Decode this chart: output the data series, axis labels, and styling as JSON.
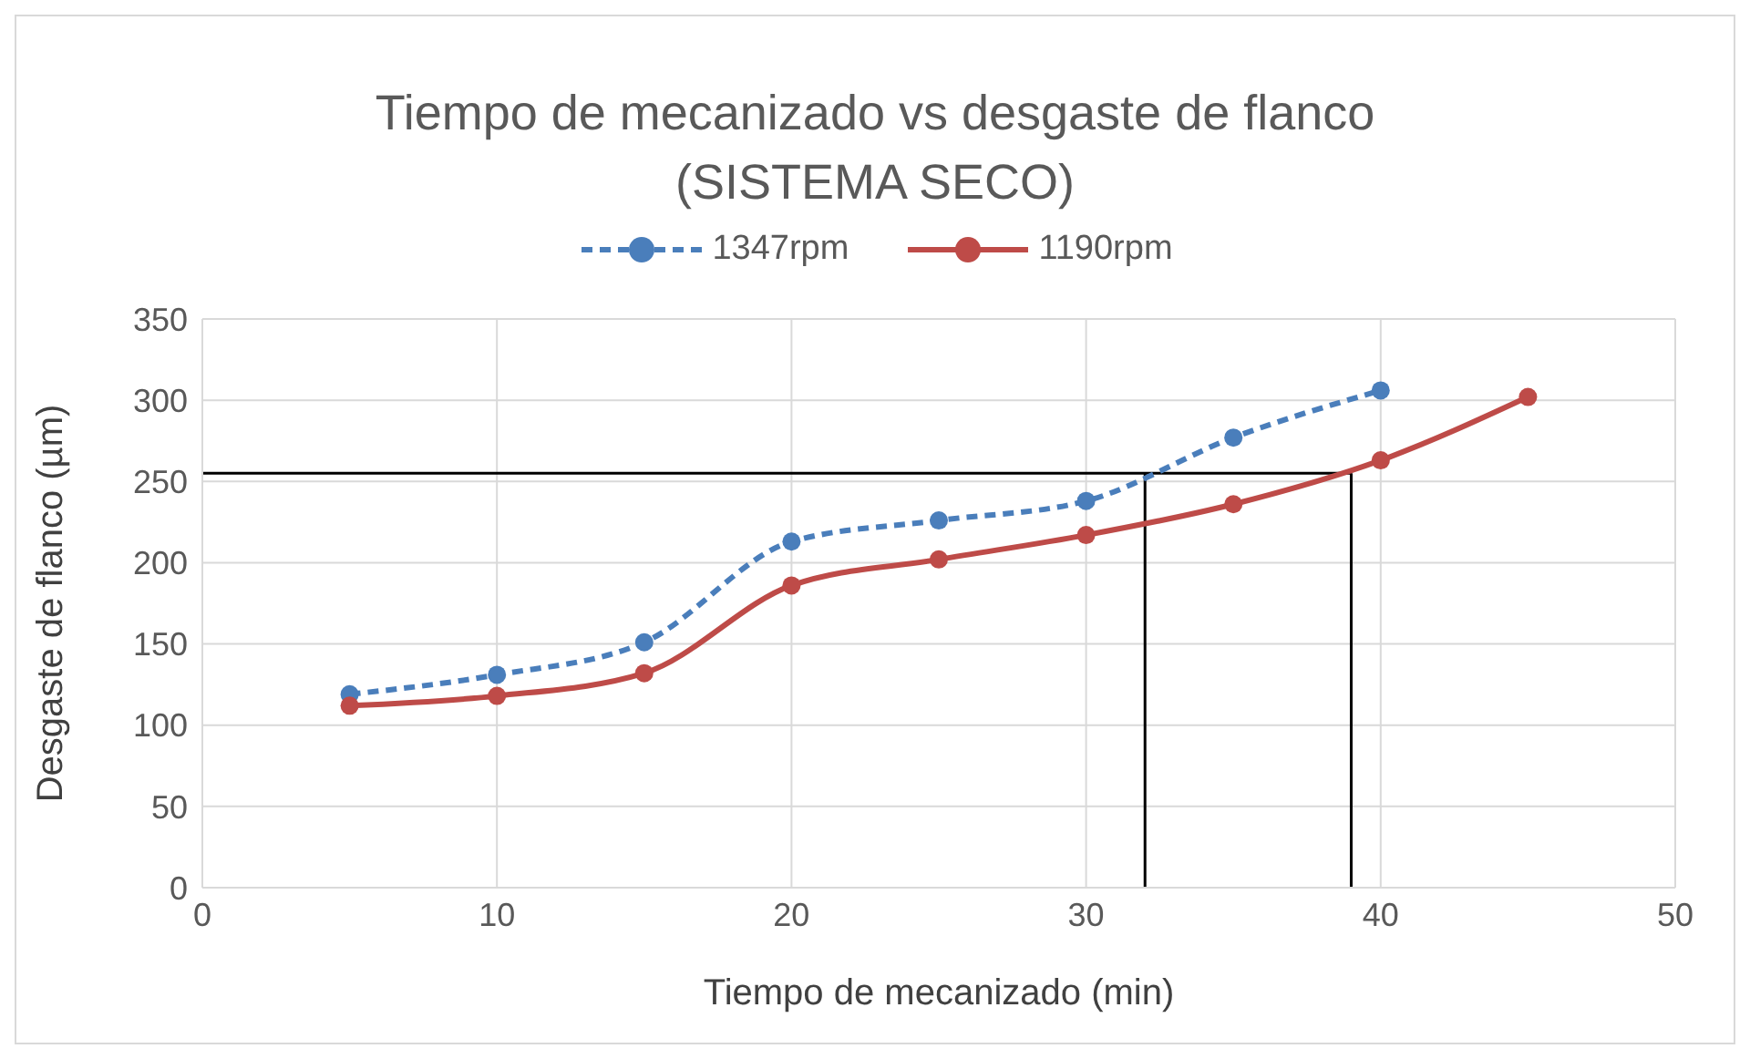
{
  "chart_data": {
    "type": "line",
    "title": "Tiempo de mecanizado vs desgaste de flanco",
    "subtitle": "(SISTEMA SECO)",
    "xlabel": "Tiempo de mecanizado (min)",
    "ylabel": "Desgaste de flanco (µm)",
    "series": [
      {
        "name": "1347rpm",
        "color": "#4a7ebb",
        "line_style": "dashed",
        "x": [
          5,
          10,
          15,
          20,
          25,
          30,
          35,
          40
        ],
        "values": [
          119,
          131,
          151,
          213,
          226,
          238,
          277,
          306
        ]
      },
      {
        "name": "1190rpm",
        "color": "#be4b48",
        "line_style": "solid",
        "x": [
          5,
          10,
          15,
          20,
          25,
          30,
          35,
          40,
          45
        ],
        "values": [
          112,
          118,
          132,
          186,
          202,
          217,
          236,
          263,
          302
        ]
      }
    ],
    "xlim": [
      0,
      50
    ],
    "xticks": [
      0,
      10,
      20,
      30,
      40,
      50
    ],
    "ylim": [
      0,
      350
    ],
    "yticks": [
      0,
      50,
      100,
      150,
      200,
      250,
      300,
      350
    ],
    "grid": true,
    "legend": "top",
    "marker": "circle",
    "ref_lines": [
      {
        "axis": "y",
        "value": 255,
        "color": "#000000"
      },
      {
        "axis": "x",
        "value": 32,
        "color": "#000000"
      },
      {
        "axis": "x",
        "value": 39,
        "color": "#000000"
      }
    ]
  }
}
